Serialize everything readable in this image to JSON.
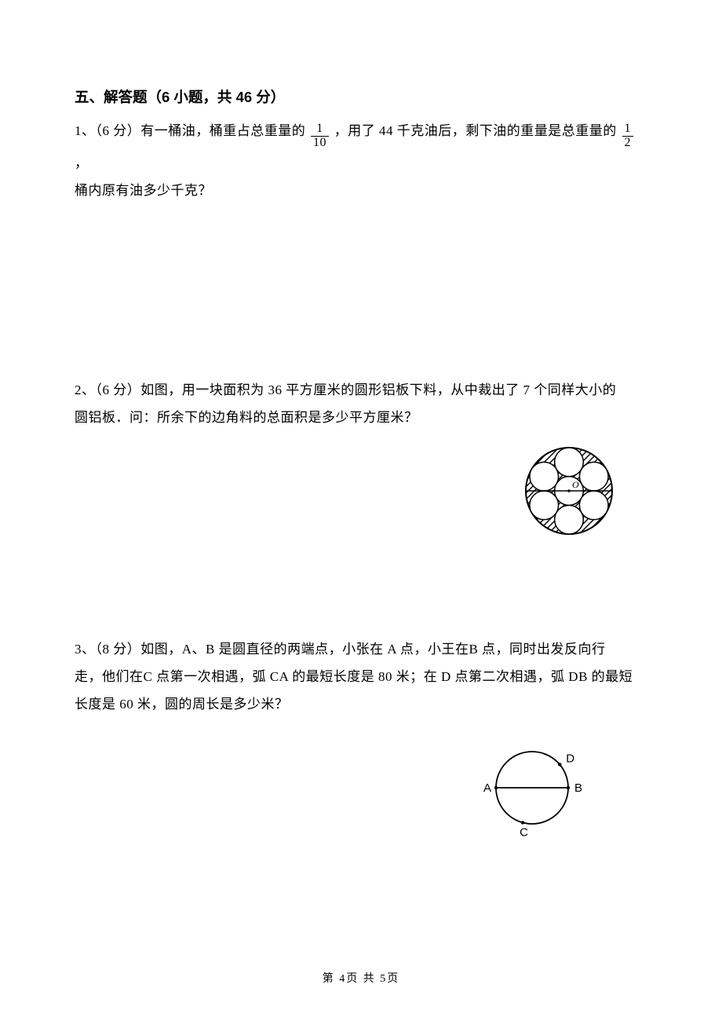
{
  "section": {
    "title_prefix": "五、解答题（6 小题，共 46 分）"
  },
  "q1": {
    "number": "1、",
    "points": "（6 分）",
    "part_a": "有一桶油，桶重占总重量的",
    "frac1_num": "1",
    "frac1_den": "10",
    "part_b": "，用了 44 千克油后，剩下油的重量是总重量的",
    "frac2_num": "1",
    "frac2_den": "2",
    "part_c": "，",
    "line2": "桶内原有油多少千克？"
  },
  "q2": {
    "number": "2、",
    "points": "（6 分）",
    "line1": "如图，用一块面积为 36 平方厘米的圆形铝板下料，从中裁出了 7 个同样大小的",
    "line2": "圆铝板．问：所余下的边角料的总面积是多少平方厘米？",
    "figure": {
      "big_r": 55,
      "small_r": 18.33,
      "stroke": "#000000",
      "hatch_spacing": 8,
      "center_label": "O"
    }
  },
  "q3": {
    "number": "3、",
    "points": "（8 分）",
    "line1": "如图，A、B 是圆直径的两端点，小张在 A 点，小王在B 点，同时出发反向行",
    "line2": "走，他们在C 点第一次相遇，弧 CA 的最短长度是 80 米；在 D 点第二次相遇，弧 DB 的最短",
    "line3": "长度是 60 米，圆的周长是多少米？",
    "figure": {
      "r": 46,
      "stroke": "#000000",
      "labels": {
        "A": "A",
        "B": "B",
        "C": "C",
        "D": "D"
      }
    }
  },
  "footer": {
    "text_prefix": "第 ",
    "page_current": "4",
    "text_middle": "页 共 ",
    "page_total": "5",
    "text_suffix": "页"
  }
}
